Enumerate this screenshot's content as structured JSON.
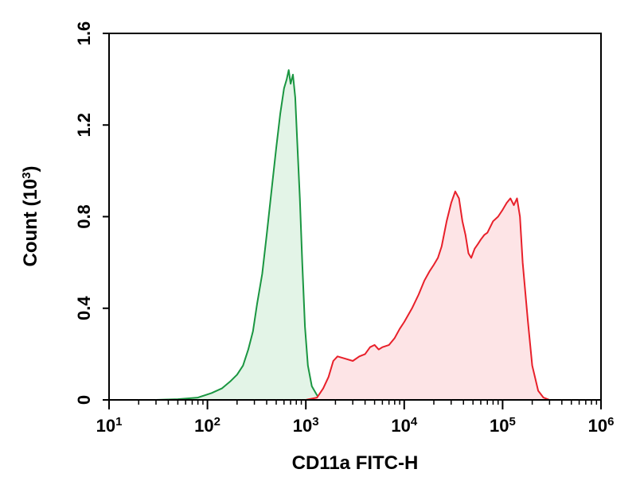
{
  "chart_data": {
    "type": "area",
    "title": "",
    "xlabel": "CD11a FITC-H",
    "ylabel_prefix": "Count (10",
    "ylabel_exp": "3",
    "ylabel_suffix": ")",
    "x_scale": "log10",
    "xlim": [
      10,
      1000000
    ],
    "ylim": [
      0,
      1.6
    ],
    "x_ticks": [
      {
        "base": "10",
        "exp": "1",
        "value": 10
      },
      {
        "base": "10",
        "exp": "2",
        "value": 100
      },
      {
        "base": "10",
        "exp": "3",
        "value": 1000
      },
      {
        "base": "10",
        "exp": "4",
        "value": 10000
      },
      {
        "base": "10",
        "exp": "5",
        "value": 100000
      },
      {
        "base": "10",
        "exp": "6",
        "value": 1000000
      }
    ],
    "y_ticks": [
      {
        "label": "0",
        "value": 0
      },
      {
        "label": "0.4",
        "value": 0.4
      },
      {
        "label": "0.8",
        "value": 0.8
      },
      {
        "label": "1.2",
        "value": 1.2
      },
      {
        "label": "1.6",
        "value": 1.6
      }
    ],
    "grid": false,
    "legend": "none",
    "series": [
      {
        "color": "#1a9641",
        "fill": "#e3f4e7",
        "points": [
          [
            30,
            0
          ],
          [
            50,
            0.003
          ],
          [
            80,
            0.01
          ],
          [
            110,
            0.03
          ],
          [
            140,
            0.05
          ],
          [
            170,
            0.08
          ],
          [
            200,
            0.11
          ],
          [
            230,
            0.15
          ],
          [
            260,
            0.22
          ],
          [
            290,
            0.3
          ],
          [
            320,
            0.42
          ],
          [
            360,
            0.55
          ],
          [
            400,
            0.72
          ],
          [
            450,
            0.92
          ],
          [
            500,
            1.1
          ],
          [
            550,
            1.25
          ],
          [
            600,
            1.36
          ],
          [
            640,
            1.4
          ],
          [
            670,
            1.44
          ],
          [
            700,
            1.38
          ],
          [
            740,
            1.42
          ],
          [
            780,
            1.32
          ],
          [
            820,
            1.12
          ],
          [
            870,
            0.88
          ],
          [
            920,
            0.6
          ],
          [
            980,
            0.32
          ],
          [
            1050,
            0.15
          ],
          [
            1150,
            0.06
          ],
          [
            1300,
            0.02
          ],
          [
            1500,
            0.005
          ],
          [
            1800,
            0
          ]
        ]
      },
      {
        "color": "#e8202a",
        "fill": "#fde4e6",
        "points": [
          [
            1000,
            0
          ],
          [
            1300,
            0.01
          ],
          [
            1500,
            0.05
          ],
          [
            1700,
            0.1
          ],
          [
            1900,
            0.17
          ],
          [
            2100,
            0.19
          ],
          [
            2500,
            0.18
          ],
          [
            3000,
            0.17
          ],
          [
            3500,
            0.19
          ],
          [
            4000,
            0.2
          ],
          [
            4500,
            0.23
          ],
          [
            5000,
            0.24
          ],
          [
            5500,
            0.22
          ],
          [
            6000,
            0.23
          ],
          [
            7000,
            0.24
          ],
          [
            8000,
            0.27
          ],
          [
            9000,
            0.31
          ],
          [
            10000,
            0.34
          ],
          [
            12000,
            0.4
          ],
          [
            14000,
            0.46
          ],
          [
            16000,
            0.52
          ],
          [
            18000,
            0.56
          ],
          [
            20000,
            0.59
          ],
          [
            22000,
            0.62
          ],
          [
            24000,
            0.67
          ],
          [
            27000,
            0.78
          ],
          [
            30000,
            0.86
          ],
          [
            33000,
            0.91
          ],
          [
            36000,
            0.88
          ],
          [
            39000,
            0.78
          ],
          [
            42000,
            0.72
          ],
          [
            45000,
            0.64
          ],
          [
            48000,
            0.62
          ],
          [
            52000,
            0.66
          ],
          [
            56000,
            0.68
          ],
          [
            60000,
            0.7
          ],
          [
            65000,
            0.72
          ],
          [
            70000,
            0.73
          ],
          [
            80000,
            0.78
          ],
          [
            90000,
            0.8
          ],
          [
            100000,
            0.83
          ],
          [
            110000,
            0.86
          ],
          [
            120000,
            0.88
          ],
          [
            130000,
            0.85
          ],
          [
            140000,
            0.88
          ],
          [
            150000,
            0.8
          ],
          [
            160000,
            0.6
          ],
          [
            180000,
            0.35
          ],
          [
            200000,
            0.15
          ],
          [
            230000,
            0.04
          ],
          [
            260000,
            0.01
          ],
          [
            300000,
            0
          ]
        ]
      }
    ]
  }
}
